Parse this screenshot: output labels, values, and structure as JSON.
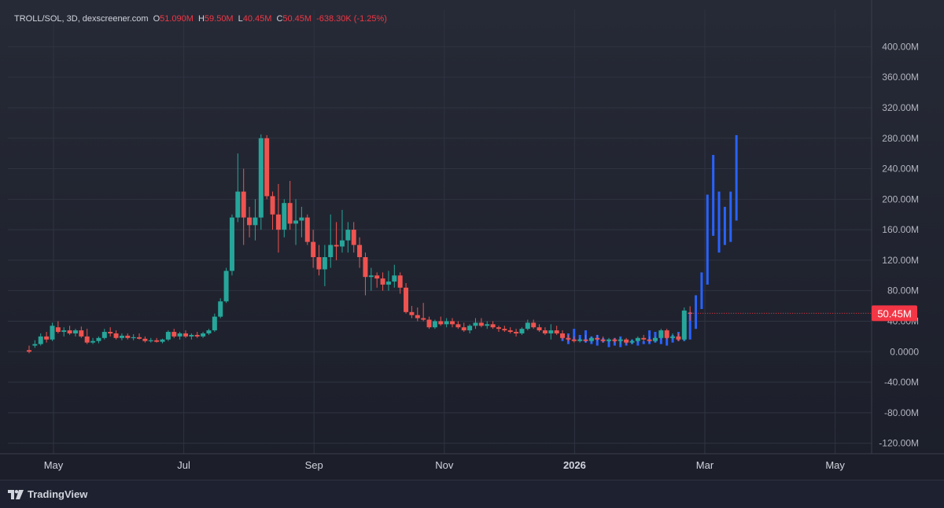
{
  "header": {
    "symbol": "TROLL/SOL, 3D, dexscreener.com",
    "open_label": "O",
    "open_value": "51.090M",
    "high_label": "H",
    "high_value": "59.50M",
    "low_label": "L",
    "low_value": "40.45M",
    "close_label": "C",
    "close_value": "50.45M",
    "change": "-638.30K (-1.25%)"
  },
  "footer": {
    "brand": "TradingView"
  },
  "colors": {
    "up": "#26a69a",
    "down": "#ef5350",
    "projection": "#2962ff",
    "price_tag": "#f23645"
  },
  "chart_data": {
    "type": "candlestick",
    "y_unit": "M",
    "ylim": [
      -140,
      420
    ],
    "y_ticks": [
      400,
      360,
      320,
      280,
      240,
      200,
      160,
      120,
      80,
      40,
      0,
      -40,
      -80,
      -120
    ],
    "y_tick_labels": [
      "400.00M",
      "360.00M",
      "320.00M",
      "280.00M",
      "240.00M",
      "200.00M",
      "160.00M",
      "120.00M",
      "80.00M",
      "40.00M",
      "0.0000",
      "-40.00M",
      "-80.00M",
      "-120.00M"
    ],
    "x_labels": [
      {
        "label": "May",
        "month": 0,
        "bold": false
      },
      {
        "label": "Jul",
        "month": 2,
        "bold": false
      },
      {
        "label": "Sep",
        "month": 4,
        "bold": false
      },
      {
        "label": "Nov",
        "month": 6,
        "bold": false
      },
      {
        "label": "2026",
        "month": 8,
        "bold": true
      },
      {
        "label": "Mar",
        "month": 10,
        "bold": false
      },
      {
        "label": "May",
        "month": 12,
        "bold": false
      }
    ],
    "last_price": 50.45,
    "last_price_label": "50.45M",
    "grid": true,
    "candles": [
      [
        2,
        8,
        -2,
        0
      ],
      [
        8,
        15,
        5,
        10
      ],
      [
        10,
        24,
        8,
        20
      ],
      [
        20,
        26,
        12,
        16
      ],
      [
        16,
        38,
        14,
        34
      ],
      [
        32,
        40,
        24,
        26
      ],
      [
        26,
        32,
        20,
        28
      ],
      [
        28,
        34,
        22,
        24
      ],
      [
        24,
        30,
        20,
        28
      ],
      [
        28,
        33,
        18,
        20
      ],
      [
        20,
        30,
        10,
        12
      ],
      [
        12,
        18,
        10,
        14
      ],
      [
        14,
        20,
        11,
        18
      ],
      [
        18,
        30,
        16,
        26
      ],
      [
        26,
        32,
        20,
        24
      ],
      [
        24,
        28,
        16,
        18
      ],
      [
        18,
        24,
        15,
        21
      ],
      [
        21,
        24,
        16,
        18
      ],
      [
        18,
        23,
        15,
        19
      ],
      [
        19,
        24,
        16,
        17
      ],
      [
        17,
        20,
        12,
        14
      ],
      [
        14,
        18,
        12,
        15
      ],
      [
        15,
        18,
        12,
        13
      ],
      [
        13,
        17,
        11,
        16
      ],
      [
        16,
        28,
        14,
        26
      ],
      [
        26,
        30,
        18,
        20
      ],
      [
        20,
        26,
        16,
        24
      ],
      [
        24,
        28,
        18,
        20
      ],
      [
        20,
        24,
        16,
        22
      ],
      [
        22,
        26,
        18,
        20
      ],
      [
        20,
        26,
        18,
        24
      ],
      [
        24,
        30,
        22,
        28
      ],
      [
        28,
        50,
        26,
        46
      ],
      [
        46,
        70,
        44,
        66
      ],
      [
        66,
        110,
        64,
        106
      ],
      [
        106,
        180,
        100,
        176
      ],
      [
        176,
        260,
        170,
        210
      ],
      [
        210,
        240,
        140,
        176
      ],
      [
        176,
        190,
        150,
        166
      ],
      [
        166,
        200,
        146,
        176
      ],
      [
        176,
        285,
        160,
        280
      ],
      [
        280,
        284,
        200,
        204
      ],
      [
        204,
        210,
        160,
        180
      ],
      [
        180,
        220,
        130,
        160
      ],
      [
        160,
        200,
        150,
        195
      ],
      [
        195,
        224,
        160,
        168
      ],
      [
        168,
        200,
        140,
        172
      ],
      [
        172,
        190,
        150,
        176
      ],
      [
        176,
        180,
        140,
        144
      ],
      [
        144,
        160,
        110,
        124
      ],
      [
        124,
        140,
        100,
        108
      ],
      [
        108,
        140,
        86,
        124
      ],
      [
        124,
        180,
        110,
        140
      ],
      [
        140,
        170,
        120,
        138
      ],
      [
        138,
        186,
        130,
        146
      ],
      [
        146,
        170,
        130,
        160
      ],
      [
        160,
        170,
        130,
        140
      ],
      [
        140,
        150,
        110,
        124
      ],
      [
        124,
        130,
        74,
        98
      ],
      [
        98,
        110,
        80,
        100
      ],
      [
        100,
        104,
        84,
        96
      ],
      [
        96,
        104,
        80,
        88
      ],
      [
        88,
        106,
        80,
        92
      ],
      [
        92,
        114,
        84,
        100
      ],
      [
        100,
        104,
        76,
        84
      ],
      [
        84,
        90,
        50,
        52
      ],
      [
        52,
        60,
        44,
        48
      ],
      [
        48,
        58,
        40,
        44
      ],
      [
        44,
        64,
        40,
        42
      ],
      [
        42,
        46,
        30,
        32
      ],
      [
        32,
        42,
        30,
        40
      ],
      [
        40,
        46,
        34,
        36
      ],
      [
        36,
        44,
        32,
        40
      ],
      [
        40,
        44,
        32,
        36
      ],
      [
        36,
        40,
        30,
        32
      ],
      [
        32,
        38,
        26,
        28
      ],
      [
        28,
        36,
        24,
        34
      ],
      [
        34,
        44,
        30,
        38
      ],
      [
        38,
        44,
        32,
        34
      ],
      [
        34,
        40,
        30,
        36
      ],
      [
        36,
        40,
        30,
        32
      ],
      [
        32,
        34,
        26,
        30
      ],
      [
        30,
        34,
        26,
        28
      ],
      [
        28,
        32,
        24,
        26
      ],
      [
        26,
        30,
        20,
        24
      ],
      [
        24,
        32,
        22,
        30
      ],
      [
        30,
        42,
        28,
        38
      ],
      [
        38,
        42,
        30,
        32
      ],
      [
        32,
        36,
        26,
        28
      ],
      [
        28,
        32,
        22,
        24
      ],
      [
        24,
        36,
        16,
        28
      ],
      [
        28,
        34,
        22,
        24
      ],
      [
        24,
        28,
        16,
        18
      ],
      [
        18,
        22,
        14,
        16
      ],
      [
        16,
        20,
        12,
        14
      ],
      [
        14,
        18,
        12,
        16
      ],
      [
        16,
        22,
        12,
        14
      ],
      [
        14,
        20,
        12,
        18
      ],
      [
        18,
        22,
        14,
        16
      ],
      [
        16,
        20,
        12,
        14
      ],
      [
        14,
        18,
        12,
        16
      ],
      [
        16,
        18,
        12,
        14
      ],
      [
        14,
        18,
        10,
        16
      ],
      [
        16,
        18,
        10,
        12
      ],
      [
        12,
        16,
        10,
        14
      ],
      [
        14,
        20,
        12,
        18
      ],
      [
        18,
        22,
        14,
        16
      ],
      [
        16,
        20,
        12,
        14
      ],
      [
        14,
        20,
        12,
        18
      ],
      [
        18,
        30,
        16,
        28
      ],
      [
        28,
        30,
        16,
        18
      ],
      [
        18,
        24,
        16,
        20
      ],
      [
        20,
        24,
        14,
        16
      ],
      [
        16,
        58,
        14,
        54
      ],
      [
        51.09,
        59.5,
        40.45,
        50.45
      ]
    ],
    "projection": {
      "color": "blue",
      "start_index": 92,
      "bars": [
        [
          14,
          20
        ],
        [
          10,
          24
        ],
        [
          16,
          30
        ],
        [
          14,
          22
        ],
        [
          12,
          28
        ],
        [
          10,
          20
        ],
        [
          8,
          22
        ],
        [
          12,
          18
        ],
        [
          6,
          16
        ],
        [
          8,
          18
        ],
        [
          6,
          20
        ],
        [
          8,
          14
        ],
        [
          10,
          16
        ],
        [
          8,
          14
        ],
        [
          10,
          14
        ],
        [
          10,
          28
        ],
        [
          12,
          26
        ],
        [
          10,
          24
        ],
        [
          8,
          20
        ],
        [
          12,
          22
        ],
        [
          14,
          26
        ],
        [
          14,
          24
        ],
        [
          16,
          52
        ],
        [
          30,
          74
        ],
        [
          56,
          104
        ],
        [
          88,
          206
        ],
        [
          152,
          258
        ],
        [
          130,
          210
        ],
        [
          140,
          190
        ],
        [
          144,
          210
        ],
        [
          172,
          284
        ]
      ]
    }
  }
}
